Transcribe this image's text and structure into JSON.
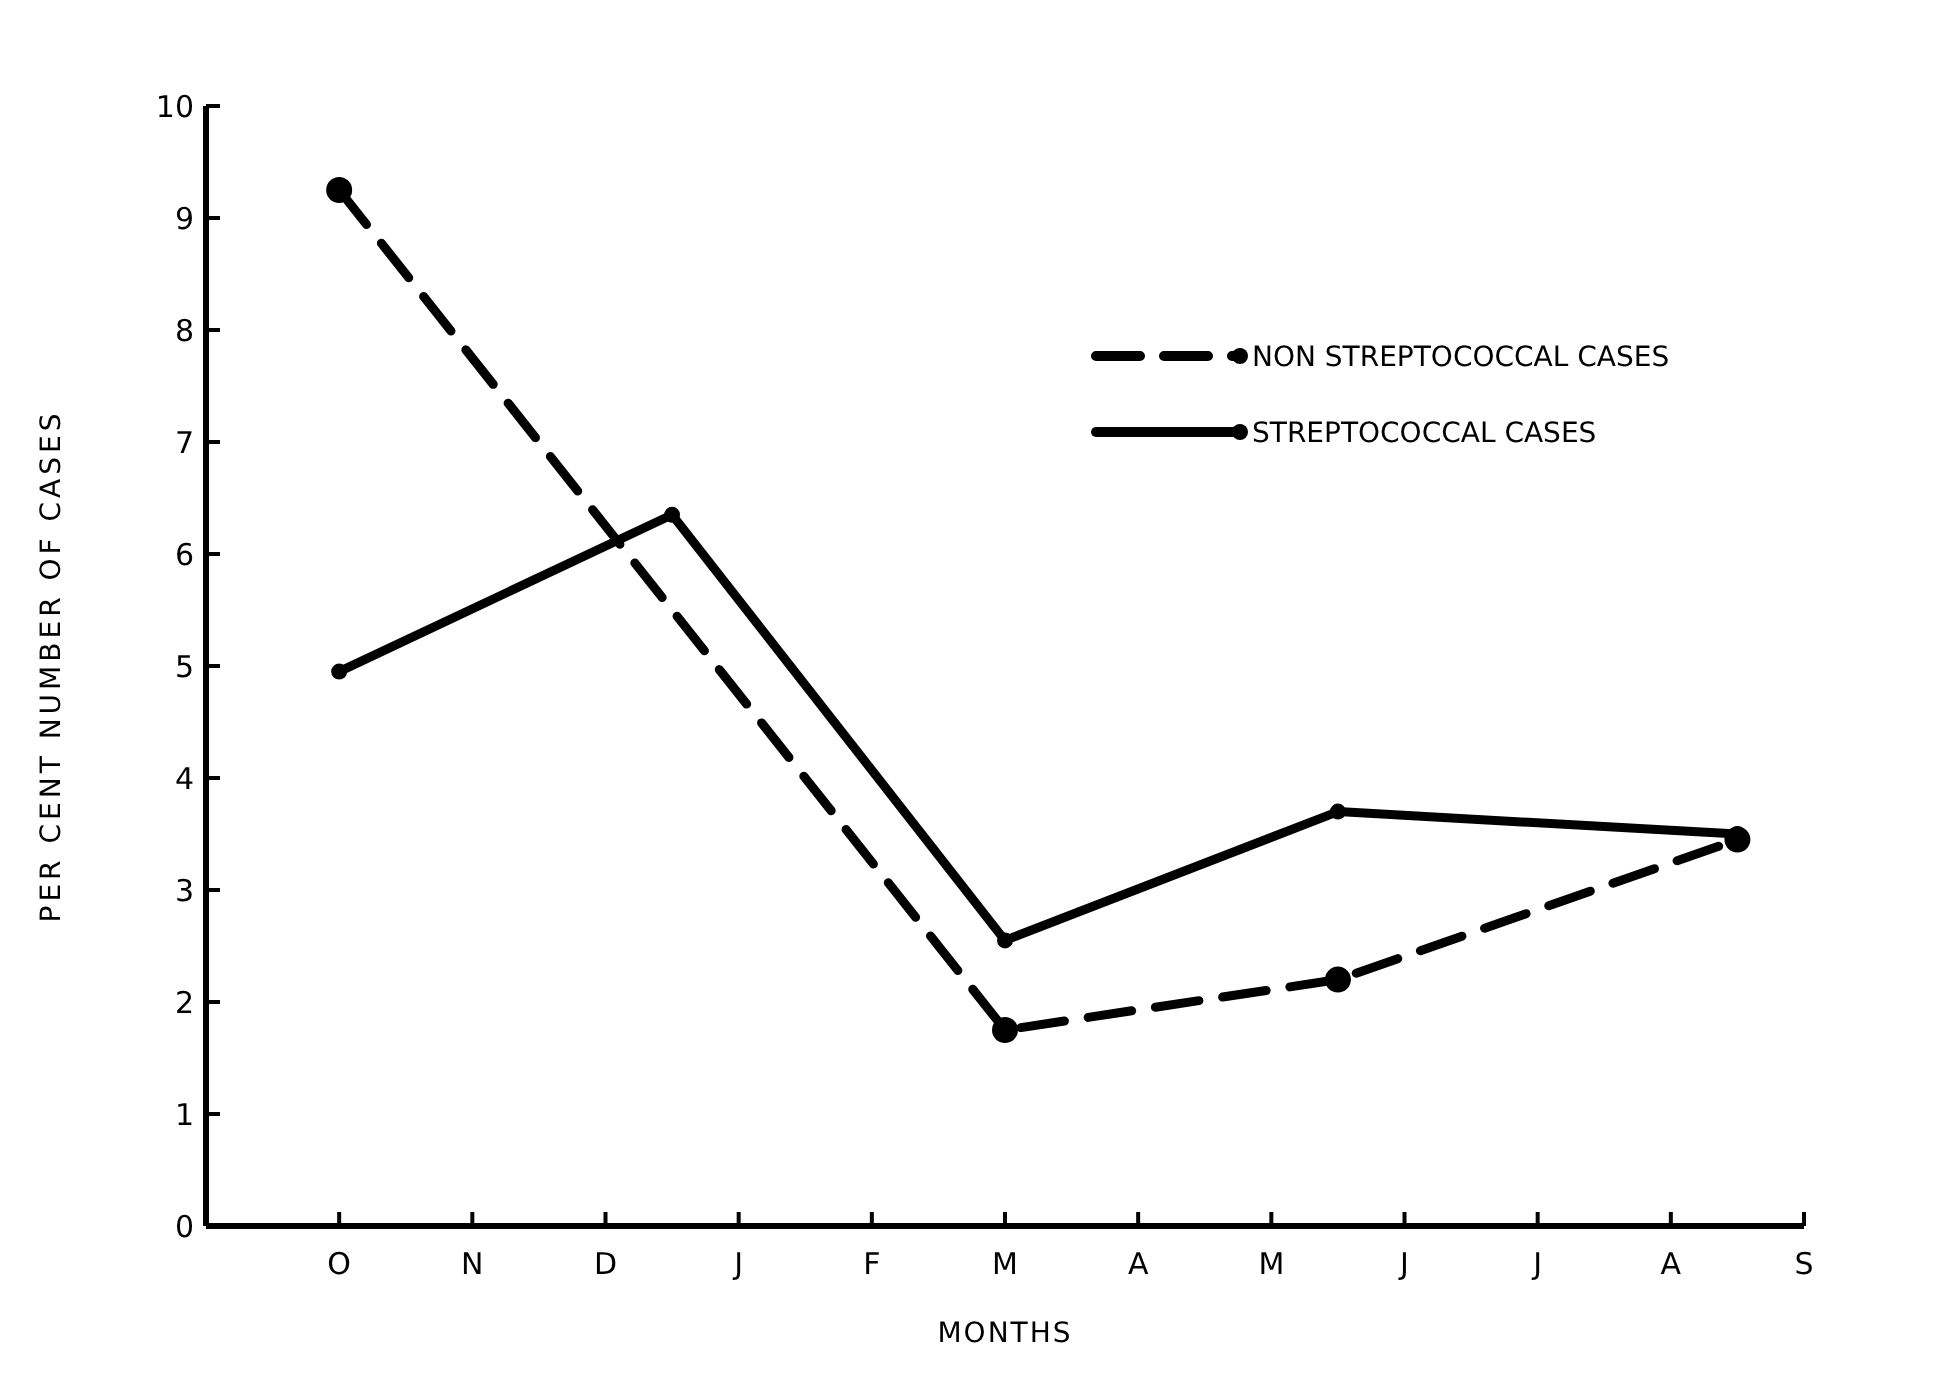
{
  "chart_data": {
    "type": "line",
    "xlabel": "MONTHS",
    "ylabel": "PER CENT NUMBER OF CASES",
    "categories": [
      "O",
      null,
      "N",
      null,
      "D",
      null,
      "J",
      null,
      "F",
      null,
      "M",
      null,
      "A",
      null,
      "M",
      null,
      "J",
      null,
      "J",
      null,
      "A",
      null,
      "S"
    ],
    "ylim": [
      0,
      10
    ],
    "yticks": [
      0,
      1,
      2,
      3,
      4,
      5,
      6,
      7,
      8,
      9,
      10
    ],
    "grid": false,
    "legend": "top right",
    "marker": "circle",
    "series": [
      {
        "name": "NON STREPTOCOCCAL CASES",
        "color": "#000000",
        "line_style": "dashed",
        "values": [
          9.25,
          null,
          null,
          null,
          null,
          null,
          null,
          null,
          null,
          null,
          1.75,
          null,
          null,
          null,
          null,
          2.2,
          null,
          null,
          null,
          null,
          null,
          3.45,
          null
        ]
      },
      {
        "name": "STREPTOCOCCAL CASES",
        "color": "#000000",
        "line_style": "solid",
        "values": [
          4.95,
          null,
          null,
          null,
          null,
          6.35,
          null,
          null,
          null,
          null,
          2.55,
          null,
          null,
          null,
          null,
          3.7,
          null,
          null,
          null,
          null,
          null,
          3.5,
          null
        ]
      }
    ]
  }
}
